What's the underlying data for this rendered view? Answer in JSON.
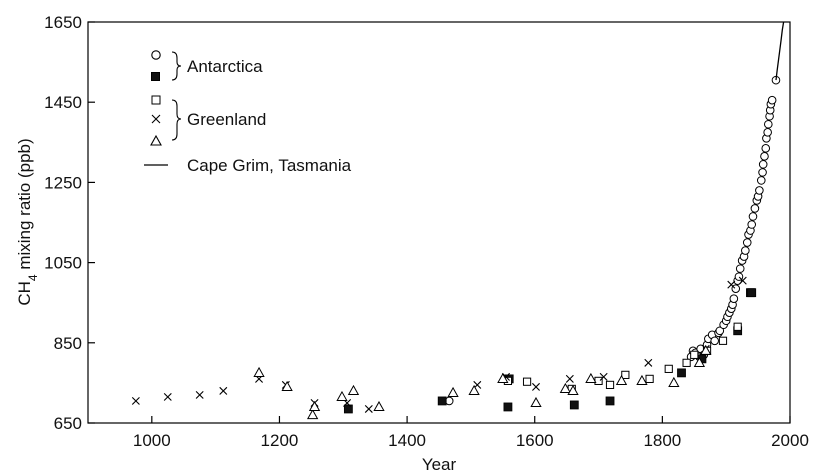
{
  "chart_data": {
    "type": "scatter",
    "title": "",
    "xlabel": "Year",
    "ylabel_main": "CH",
    "ylabel_sub": "4",
    "ylabel_rest": " mixing ratio (ppb)",
    "xlim": [
      900,
      2000
    ],
    "ylim": [
      650,
      1650
    ],
    "x_ticks": [
      1000,
      1200,
      1400,
      1600,
      1800,
      2000
    ],
    "y_ticks": [
      650,
      850,
      1050,
      1250,
      1450,
      1650
    ],
    "x_tick_labels": [
      "1000",
      "1200",
      "1400",
      "1600",
      "1800",
      "2000"
    ],
    "y_tick_labels": [
      "650",
      "850",
      "1050",
      "1250",
      "1450",
      "1650"
    ],
    "grid": false,
    "legend_position": "top-left",
    "legend_groups": [
      {
        "label": "Antarctica",
        "series": [
          "Antarctica (open circles)",
          "Antarctica (filled squares)"
        ]
      },
      {
        "label": "Greenland",
        "series": [
          "Greenland (open squares)",
          "Greenland (crosses)",
          "Greenland (triangles)"
        ]
      },
      {
        "label": "Cape Grim, Tasmania",
        "series": [
          "Cape Grim, Tasmania"
        ]
      }
    ],
    "series": [
      {
        "key": "ant_circle",
        "marker": "circle-open",
        "points": [
          [
            1466,
            705
          ],
          [
            1845,
            815
          ],
          [
            1848,
            830
          ],
          [
            1852,
            825
          ],
          [
            1858,
            815
          ],
          [
            1860,
            835
          ],
          [
            1865,
            820
          ],
          [
            1870,
            845
          ],
          [
            1872,
            860
          ],
          [
            1878,
            870
          ],
          [
            1882,
            855
          ],
          [
            1888,
            875
          ],
          [
            1890,
            880
          ],
          [
            1896,
            895
          ],
          [
            1900,
            905
          ],
          [
            1902,
            915
          ],
          [
            1905,
            925
          ],
          [
            1908,
            935
          ],
          [
            1910,
            945
          ],
          [
            1912,
            960
          ],
          [
            1915,
            985
          ],
          [
            1918,
            1005
          ],
          [
            1920,
            1015
          ],
          [
            1922,
            1035
          ],
          [
            1925,
            1055
          ],
          [
            1928,
            1065
          ],
          [
            1930,
            1080
          ],
          [
            1933,
            1100
          ],
          [
            1935,
            1120
          ],
          [
            1938,
            1130
          ],
          [
            1940,
            1145
          ],
          [
            1942,
            1165
          ],
          [
            1945,
            1185
          ],
          [
            1948,
            1205
          ],
          [
            1950,
            1215
          ],
          [
            1952,
            1230
          ],
          [
            1955,
            1255
          ],
          [
            1957,
            1275
          ],
          [
            1958,
            1295
          ],
          [
            1960,
            1315
          ],
          [
            1962,
            1335
          ],
          [
            1963,
            1360
          ],
          [
            1965,
            1375
          ],
          [
            1966,
            1395
          ],
          [
            1968,
            1415
          ],
          [
            1969,
            1430
          ],
          [
            1970,
            1445
          ],
          [
            1972,
            1455
          ],
          [
            1978,
            1505
          ]
        ]
      },
      {
        "key": "ant_square",
        "marker": "square-filled",
        "points": [
          [
            1308,
            685
          ],
          [
            1455,
            705
          ],
          [
            1558,
            690
          ],
          [
            1560,
            760
          ],
          [
            1662,
            695
          ],
          [
            1718,
            705
          ],
          [
            1830,
            775
          ],
          [
            1862,
            810
          ],
          [
            1918,
            880
          ],
          [
            1938,
            975
          ],
          [
            1940,
            975
          ]
        ]
      },
      {
        "key": "grn_square",
        "marker": "square-open",
        "points": [
          [
            1558,
            755
          ],
          [
            1588,
            753
          ],
          [
            1658,
            735
          ],
          [
            1700,
            755
          ],
          [
            1718,
            745
          ],
          [
            1742,
            770
          ],
          [
            1780,
            760
          ],
          [
            1810,
            785
          ],
          [
            1838,
            800
          ],
          [
            1850,
            820
          ],
          [
            1870,
            830
          ],
          [
            1895,
            855
          ],
          [
            1918,
            890
          ]
        ]
      },
      {
        "key": "grn_cross",
        "marker": "cross",
        "points": [
          [
            975,
            705
          ],
          [
            1025,
            715
          ],
          [
            1075,
            720
          ],
          [
            1112,
            730
          ],
          [
            1168,
            760
          ],
          [
            1210,
            745
          ],
          [
            1255,
            700
          ],
          [
            1306,
            700
          ],
          [
            1340,
            685
          ],
          [
            1510,
            745
          ],
          [
            1555,
            765
          ],
          [
            1602,
            740
          ],
          [
            1655,
            760
          ],
          [
            1708,
            765
          ],
          [
            1778,
            800
          ],
          [
            1868,
            835
          ],
          [
            1908,
            995
          ],
          [
            1926,
            1005
          ]
        ]
      },
      {
        "key": "grn_triangle",
        "marker": "triangle-open",
        "points": [
          [
            1168,
            775
          ],
          [
            1212,
            740
          ],
          [
            1252,
            670
          ],
          [
            1255,
            690
          ],
          [
            1298,
            715
          ],
          [
            1316,
            730
          ],
          [
            1356,
            690
          ],
          [
            1472,
            725
          ],
          [
            1505,
            730
          ],
          [
            1550,
            760
          ],
          [
            1602,
            700
          ],
          [
            1648,
            735
          ],
          [
            1660,
            730
          ],
          [
            1688,
            760
          ],
          [
            1736,
            755
          ],
          [
            1768,
            755
          ],
          [
            1818,
            750
          ],
          [
            1858,
            800
          ],
          [
            1868,
            830
          ]
        ]
      },
      {
        "key": "cape_grim",
        "marker": "line",
        "points": [
          [
            1978,
            1505
          ],
          [
            1980,
            1530
          ],
          [
            1982,
            1555
          ],
          [
            1984,
            1580
          ],
          [
            1986,
            1605
          ],
          [
            1988,
            1630
          ],
          [
            1990,
            1650
          ]
        ]
      }
    ]
  }
}
